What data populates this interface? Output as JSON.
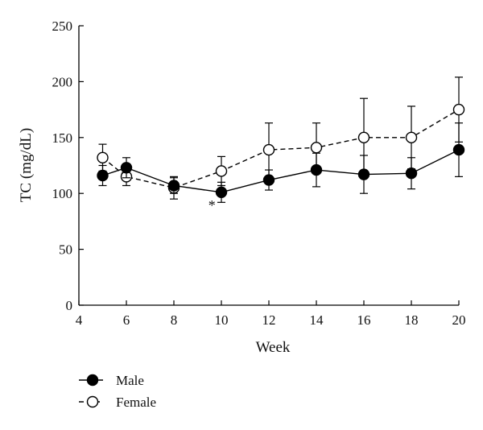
{
  "chart_data": {
    "type": "line",
    "title": "",
    "xlabel": "Week",
    "ylabel": "TC (mg/dL)",
    "xlim": [
      4,
      20
    ],
    "ylim": [
      0,
      250
    ],
    "x_ticks": [
      "4",
      "6",
      "8",
      "10",
      "12",
      "14",
      "16",
      "18",
      "20"
    ],
    "y_ticks": [
      "0",
      "50",
      "100",
      "150",
      "200",
      "250"
    ],
    "grid": false,
    "legend_position": "bottom-left",
    "series": [
      {
        "name": "Male",
        "marker": "filled-circle",
        "line": "solid",
        "color": "#000000",
        "points": [
          {
            "x": 5,
            "y": 116,
            "err": 9
          },
          {
            "x": 6,
            "y": 123,
            "err": 9
          },
          {
            "x": 8,
            "y": 107,
            "err": 7
          },
          {
            "x": 10,
            "y": 101,
            "err": 9
          },
          {
            "x": 12,
            "y": 112,
            "err": 9
          },
          {
            "x": 14,
            "y": 121,
            "err": 15
          },
          {
            "x": 16,
            "y": 117,
            "err": 17
          },
          {
            "x": 18,
            "y": 118,
            "err": 14
          },
          {
            "x": 20,
            "y": 139,
            "err": 24
          }
        ]
      },
      {
        "name": "Female",
        "marker": "open-circle",
        "line": "dashed",
        "color": "#000000",
        "points": [
          {
            "x": 5,
            "y": 132,
            "err": 12
          },
          {
            "x": 6,
            "y": 115,
            "err": 8
          },
          {
            "x": 8,
            "y": 105,
            "err": 10
          },
          {
            "x": 10,
            "y": 120,
            "err": 13
          },
          {
            "x": 12,
            "y": 139,
            "err": 24
          },
          {
            "x": 14,
            "y": 141,
            "err": 22
          },
          {
            "x": 16,
            "y": 150,
            "err": 35
          },
          {
            "x": 18,
            "y": 150,
            "err": 28
          },
          {
            "x": 20,
            "y": 175,
            "err": 29
          }
        ]
      }
    ],
    "annotations": [
      {
        "text": "*",
        "x": 9.6,
        "y": 95
      }
    ]
  }
}
